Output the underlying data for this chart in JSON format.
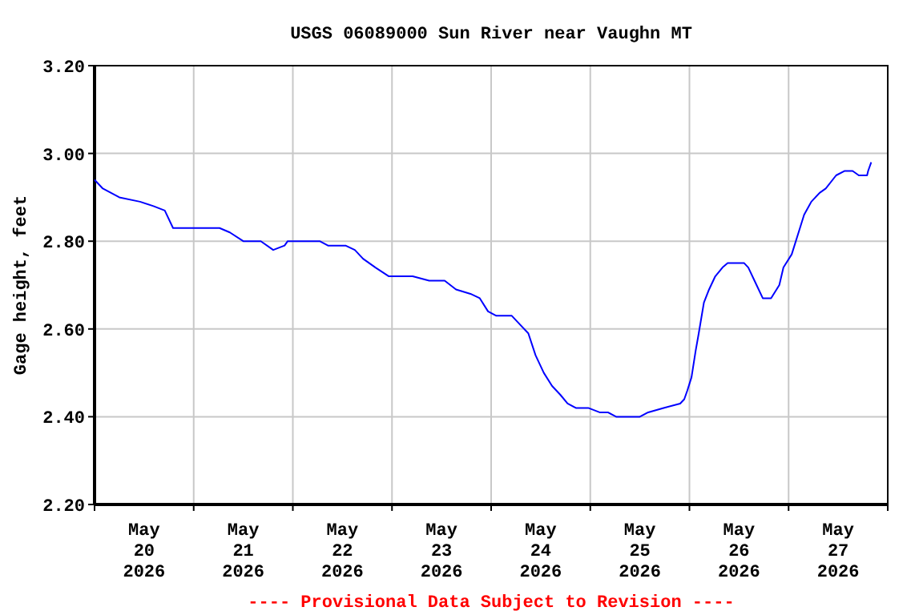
{
  "chart_data": {
    "type": "line",
    "title": "USGS 06089000 Sun River near Vaughn MT",
    "ylabel": "Gage height, feet",
    "annotations": [
      "---- Provisional Data Subject to Revision ----"
    ],
    "grid": true,
    "xlim": [
      "2026-05-20T00:00",
      "2026-05-28T00:00"
    ],
    "xticks": [
      {
        "value": "2026-05-20T00:00",
        "label": null
      },
      {
        "value": "2026-05-20T12:00",
        "label": "May\n20\n2026"
      },
      {
        "value": "2026-05-21T00:00",
        "label": null
      },
      {
        "value": "2026-05-21T12:00",
        "label": "May\n21\n2026"
      },
      {
        "value": "2026-05-22T00:00",
        "label": null
      },
      {
        "value": "2026-05-22T12:00",
        "label": "May\n22\n2026"
      },
      {
        "value": "2026-05-23T00:00",
        "label": null
      },
      {
        "value": "2026-05-23T12:00",
        "label": "May\n23\n2026"
      },
      {
        "value": "2026-05-24T00:00",
        "label": null
      },
      {
        "value": "2026-05-24T12:00",
        "label": "May\n24\n2026"
      },
      {
        "value": "2026-05-25T00:00",
        "label": null
      },
      {
        "value": "2026-05-25T12:00",
        "label": "May\n25\n2026"
      },
      {
        "value": "2026-05-26T00:00",
        "label": null
      },
      {
        "value": "2026-05-26T12:00",
        "label": "May\n26\n2026"
      },
      {
        "value": "2026-05-27T00:00",
        "label": null
      },
      {
        "value": "2026-05-27T12:00",
        "label": "May\n27\n2026"
      },
      {
        "value": "2026-05-28T00:00",
        "label": null
      }
    ],
    "ylim": [
      2.2,
      3.2
    ],
    "yticks": [
      {
        "value": 2.2,
        "label": "2.20"
      },
      {
        "value": 2.4,
        "label": "2.40"
      },
      {
        "value": 2.6,
        "label": "2.60"
      },
      {
        "value": 2.8,
        "label": "2.80"
      },
      {
        "value": 3.0,
        "label": "3.00"
      },
      {
        "value": 3.2,
        "label": "3.20"
      }
    ],
    "series": [
      {
        "color": "#0000ff",
        "x": [
          "2026-05-20T00:00",
          "2026-05-20T02:00",
          "2026-05-20T06:00",
          "2026-05-20T11:00",
          "2026-05-20T14:15",
          "2026-05-20T17:00",
          "2026-05-20T19:00",
          "2026-05-20T23:30",
          "2026-05-21T02:45",
          "2026-05-21T06:15",
          "2026-05-21T08:45",
          "2026-05-21T12:00",
          "2026-05-21T16:15",
          "2026-05-21T19:15",
          "2026-05-21T22:00",
          "2026-05-21T22:45",
          "2026-05-22T06:30",
          "2026-05-22T08:30",
          "2026-05-22T12:45",
          "2026-05-22T15:00",
          "2026-05-22T17:00",
          "2026-05-22T20:00",
          "2026-05-22T23:15",
          "2026-05-23T05:00",
          "2026-05-23T09:00",
          "2026-05-23T12:45",
          "2026-05-23T15:30",
          "2026-05-23T19:00",
          "2026-05-23T21:15",
          "2026-05-23T23:15",
          "2026-05-24T01:15",
          "2026-05-24T05:00",
          "2026-05-24T07:00",
          "2026-05-24T09:00",
          "2026-05-24T10:45",
          "2026-05-24T12:45",
          "2026-05-24T14:45",
          "2026-05-24T16:45",
          "2026-05-24T18:30",
          "2026-05-24T20:30",
          "2026-05-24T23:30",
          "2026-05-25T02:15",
          "2026-05-25T04:15",
          "2026-05-25T06:15",
          "2026-05-25T09:15",
          "2026-05-25T12:00",
          "2026-05-25T14:00",
          "2026-05-25T17:45",
          "2026-05-25T21:45",
          "2026-05-25T22:45",
          "2026-05-25T23:30",
          "2026-05-26T00:30",
          "2026-05-26T01:30",
          "2026-05-26T02:15",
          "2026-05-26T03:30",
          "2026-05-26T04:45",
          "2026-05-26T06:15",
          "2026-05-26T08:00",
          "2026-05-26T09:15",
          "2026-05-26T13:15",
          "2026-05-26T14:15",
          "2026-05-26T16:15",
          "2026-05-26T17:45",
          "2026-05-26T19:45",
          "2026-05-26T21:45",
          "2026-05-26T22:45",
          "2026-05-27T00:45",
          "2026-05-27T02:45",
          "2026-05-27T03:45",
          "2026-05-27T05:30",
          "2026-05-27T07:30",
          "2026-05-27T09:00",
          "2026-05-27T11:30",
          "2026-05-27T13:30",
          "2026-05-27T15:30",
          "2026-05-27T17:00",
          "2026-05-27T19:00",
          "2026-05-27T19:15",
          "2026-05-27T20:00"
        ],
        "values": [
          2.94,
          2.92,
          2.9,
          2.89,
          2.88,
          2.87,
          2.83,
          2.83,
          2.83,
          2.83,
          2.82,
          2.8,
          2.8,
          2.78,
          2.79,
          2.8,
          2.8,
          2.79,
          2.79,
          2.78,
          2.76,
          2.74,
          2.72,
          2.72,
          2.71,
          2.71,
          2.69,
          2.68,
          2.67,
          2.64,
          2.63,
          2.63,
          2.61,
          2.59,
          2.54,
          2.5,
          2.47,
          2.45,
          2.43,
          2.42,
          2.42,
          2.41,
          2.41,
          2.4,
          2.4,
          2.4,
          2.41,
          2.42,
          2.43,
          2.44,
          2.46,
          2.49,
          2.55,
          2.59,
          2.66,
          2.69,
          2.72,
          2.74,
          2.75,
          2.75,
          2.74,
          2.7,
          2.67,
          2.67,
          2.7,
          2.74,
          2.77,
          2.83,
          2.86,
          2.89,
          2.91,
          2.92,
          2.95,
          2.96,
          2.96,
          2.95,
          2.95,
          2.96,
          2.98
        ]
      }
    ]
  }
}
